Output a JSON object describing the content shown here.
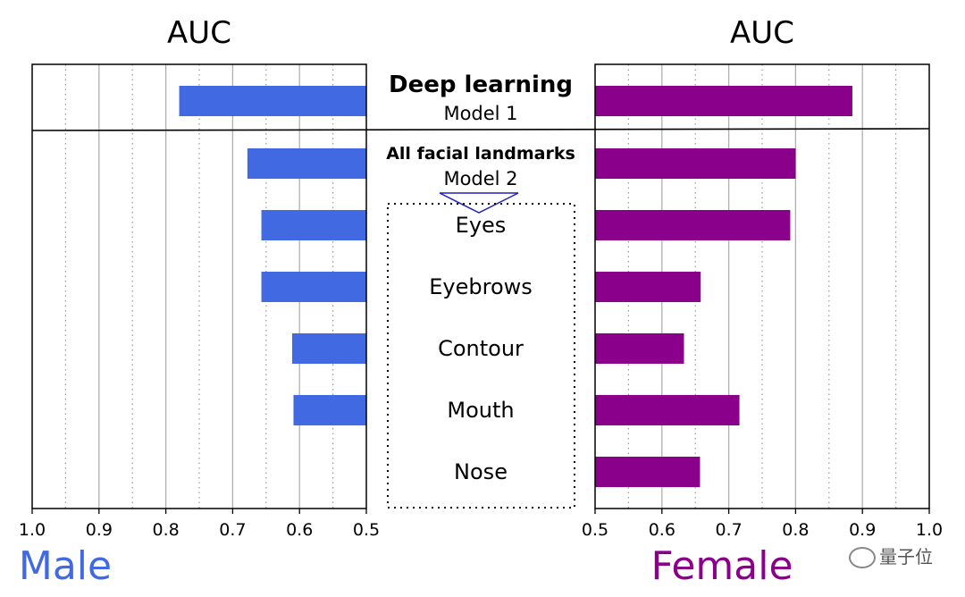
{
  "chart_data": {
    "type": "bar",
    "categories": [
      "Model 1",
      "Model 2",
      "Eyes",
      "Eyebrows",
      "Contour",
      "Mouth",
      "Nose"
    ],
    "group_labels": [
      "Deep learning",
      "All facial landmarks"
    ],
    "axis_title": "AUC",
    "xlim": [
      0.5,
      1.0
    ],
    "ticks": [
      "0.5",
      "0.6",
      "0.7",
      "0.8",
      "0.9",
      "1.0"
    ],
    "tick_values": [
      0.5,
      0.6,
      0.7,
      0.8,
      0.9,
      1.0
    ],
    "grid": true,
    "panels": [
      {
        "name": "Male",
        "axis_title": "AUC",
        "direction": "reversed",
        "color": "#4169e1",
        "values": [
          0.78,
          0.678,
          0.657,
          0.657,
          0.611,
          0.609,
          null
        ]
      },
      {
        "name": "Female",
        "axis_title": "AUC",
        "direction": "normal",
        "color": "#8b008b",
        "values": [
          0.885,
          0.8,
          0.792,
          0.658,
          0.633,
          0.716,
          0.657
        ]
      }
    ]
  },
  "watermark": "量子位"
}
